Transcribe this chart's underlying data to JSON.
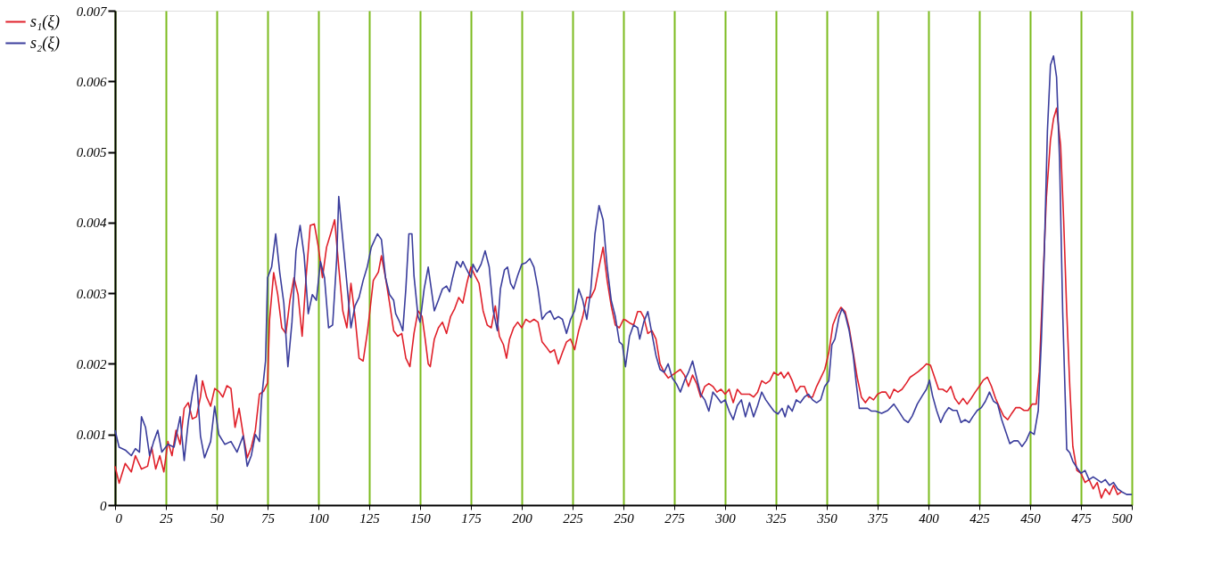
{
  "chart_data": {
    "type": "line",
    "xlim": [
      0,
      500
    ],
    "ylim": [
      0,
      0.007
    ],
    "xticks": [
      0,
      25,
      50,
      75,
      100,
      125,
      150,
      175,
      200,
      225,
      250,
      275,
      300,
      325,
      350,
      375,
      400,
      425,
      450,
      475,
      500
    ],
    "yticks": [
      0,
      0.001,
      0.002,
      0.003,
      0.004,
      0.005,
      0.006,
      0.007
    ],
    "grid": "x",
    "legend": "left",
    "series": [
      {
        "name": "s₁(ξ)",
        "color": "#e0202a",
        "x": [
          0,
          2,
          5,
          8,
          10,
          13,
          16,
          18,
          20,
          22,
          24,
          26,
          28,
          30,
          32,
          34,
          36,
          38,
          40,
          42,
          43,
          45,
          47,
          49,
          51,
          53,
          55,
          57,
          59,
          61,
          63,
          65,
          67,
          69,
          71,
          73,
          75,
          76,
          78,
          80,
          82,
          84,
          86,
          88,
          90,
          92,
          94,
          96,
          98,
          100,
          102,
          104,
          106,
          108,
          110,
          112,
          114,
          116,
          118,
          120,
          122,
          124,
          125,
          127,
          129.5,
          131,
          133,
          135,
          137,
          139,
          141,
          143,
          145,
          147,
          149,
          151,
          152.5,
          154,
          155,
          157,
          159,
          161,
          163,
          165,
          167,
          169,
          171,
          173,
          175,
          177,
          179,
          181,
          183,
          185,
          187,
          189,
          191,
          192.5,
          194,
          196,
          198,
          200,
          202,
          204,
          206,
          208,
          210,
          212,
          214,
          216,
          218,
          220,
          222,
          224,
          226,
          228,
          230,
          232,
          234,
          236,
          238,
          240,
          242,
          244,
          246,
          248,
          250,
          251,
          253,
          255,
          257,
          258.5,
          260,
          262,
          264,
          266,
          268,
          270,
          272,
          274,
          276,
          278,
          280,
          282,
          284,
          286,
          288,
          290,
          292,
          294,
          296,
          298,
          300,
          302,
          304,
          306,
          308,
          310,
          312,
          314,
          316,
          318,
          320,
          322,
          324,
          326,
          327.5,
          329,
          331,
          333,
          335,
          337,
          339,
          341,
          343,
          345,
          347,
          349,
          351,
          353,
          355,
          357,
          359,
          361,
          363,
          365,
          367,
          369,
          371,
          373,
          375,
          377,
          379,
          381,
          383,
          385,
          387,
          389,
          391,
          393,
          395,
          397,
          399,
          401,
          403,
          405,
          407,
          409,
          411,
          413,
          415,
          417,
          419,
          421,
          423,
          425,
          427,
          429,
          431,
          433,
          435,
          437,
          439,
          441,
          443,
          445,
          447,
          449,
          451,
          453,
          454.5,
          456,
          458,
          460,
          461.5,
          463,
          465,
          466.5,
          468,
          469.5,
          471,
          473,
          475,
          477,
          479,
          481,
          483,
          485,
          487,
          489,
          491,
          493,
          495
        ],
        "values": [
          0.00055,
          0.00031,
          0.00059,
          0.00047,
          0.0007,
          0.00051,
          0.00055,
          0.00082,
          0.00051,
          0.0007,
          0.00047,
          0.0009,
          0.0007,
          0.00106,
          0.00086,
          0.00137,
          0.00145,
          0.00122,
          0.00125,
          0.00153,
          0.00176,
          0.00153,
          0.0014,
          0.00165,
          0.00161,
          0.00153,
          0.00169,
          0.00165,
          0.0011,
          0.00137,
          0.001,
          0.00067,
          0.00082,
          0.00106,
          0.00157,
          0.00161,
          0.00173,
          0.00263,
          0.00329,
          0.00298,
          0.00251,
          0.00243,
          0.0029,
          0.00322,
          0.00298,
          0.00239,
          0.00325,
          0.00396,
          0.00398,
          0.00365,
          0.00322,
          0.00365,
          0.00384,
          0.00404,
          0.00337,
          0.00275,
          0.00251,
          0.00314,
          0.00267,
          0.00208,
          0.00204,
          0.00243,
          0.00267,
          0.00318,
          0.0033,
          0.00353,
          0.00322,
          0.00286,
          0.00247,
          0.00239,
          0.00243,
          0.00208,
          0.00196,
          0.00243,
          0.00275,
          0.00267,
          0.00235,
          0.002,
          0.00196,
          0.00235,
          0.00251,
          0.00259,
          0.00243,
          0.00267,
          0.00278,
          0.00294,
          0.00286,
          0.00314,
          0.00337,
          0.00325,
          0.00314,
          0.00275,
          0.00255,
          0.00251,
          0.00282,
          0.00239,
          0.00227,
          0.00208,
          0.00235,
          0.00251,
          0.00259,
          0.00251,
          0.00263,
          0.00259,
          0.00263,
          0.00259,
          0.00231,
          0.00224,
          0.00216,
          0.0022,
          0.002,
          0.00216,
          0.00231,
          0.00235,
          0.0022,
          0.00247,
          0.00267,
          0.00294,
          0.00294,
          0.00306,
          0.00337,
          0.00365,
          0.00318,
          0.00282,
          0.00255,
          0.00251,
          0.00263,
          0.00262,
          0.00258,
          0.00255,
          0.00274,
          0.00274,
          0.00266,
          0.00243,
          0.00247,
          0.00235,
          0.002,
          0.00188,
          0.0018,
          0.00184,
          0.00188,
          0.00192,
          0.00184,
          0.00168,
          0.00184,
          0.00172,
          0.00153,
          0.00168,
          0.00172,
          0.00168,
          0.0016,
          0.00164,
          0.00157,
          0.00164,
          0.00145,
          0.00164,
          0.00157,
          0.00157,
          0.00157,
          0.00153,
          0.0016,
          0.00176,
          0.00172,
          0.00176,
          0.00188,
          0.00184,
          0.00188,
          0.0018,
          0.00188,
          0.00176,
          0.0016,
          0.00168,
          0.00168,
          0.00153,
          0.00153,
          0.00168,
          0.0018,
          0.00192,
          0.00216,
          0.00255,
          0.0027,
          0.0028,
          0.00274,
          0.00251,
          0.00216,
          0.0018,
          0.00153,
          0.00145,
          0.00153,
          0.00149,
          0.00157,
          0.0016,
          0.0016,
          0.00151,
          0.00164,
          0.0016,
          0.00164,
          0.00172,
          0.00181,
          0.00185,
          0.00189,
          0.00194,
          0.002,
          0.00198,
          0.00181,
          0.00164,
          0.00164,
          0.0016,
          0.00168,
          0.00151,
          0.00143,
          0.00151,
          0.00143,
          0.00151,
          0.0016,
          0.00168,
          0.00177,
          0.00181,
          0.00168,
          0.00151,
          0.00138,
          0.00126,
          0.00121,
          0.0013,
          0.00138,
          0.00138,
          0.00134,
          0.00134,
          0.00143,
          0.00143,
          0.00189,
          0.00296,
          0.00436,
          0.00517,
          0.00547,
          0.00562,
          0.00509,
          0.00402,
          0.00274,
          0.00168,
          0.00083,
          0.00049,
          0.00045,
          0.00032,
          0.00036,
          0.00023,
          0.00032,
          0.0001,
          0.00023,
          0.00015,
          0.00028,
          0.00015,
          0.00019
        ]
      },
      {
        "name": "s₂(ξ)",
        "color": "#3a3d9c",
        "x": [
          0,
          2,
          5,
          8,
          10,
          12,
          13,
          15,
          17,
          19,
          21,
          23,
          26,
          29,
          32,
          34,
          36,
          38,
          40,
          42,
          44,
          47,
          49,
          51,
          54,
          57,
          60,
          63,
          65,
          67,
          69,
          71,
          72,
          74,
          75,
          77,
          79,
          81,
          83,
          85,
          87,
          89,
          91,
          93,
          95,
          97,
          99,
          101,
          103,
          105,
          107,
          109,
          110,
          112,
          114,
          116,
          118,
          120,
          122,
          124,
          126,
          129,
          131,
          133,
          135,
          137,
          138,
          140,
          141.5,
          143,
          144.5,
          146,
          147,
          149,
          150,
          152,
          154,
          155.5,
          157,
          159,
          161,
          163,
          164.5,
          166,
          168,
          170,
          171,
          173,
          175,
          176,
          178,
          180,
          182,
          184,
          186,
          188,
          189.5,
          191.5,
          193,
          194.5,
          196,
          198,
          200,
          202,
          204,
          206,
          208,
          210,
          212,
          214,
          216,
          218,
          220,
          222,
          224,
          226,
          228,
          230,
          232,
          234,
          236,
          238,
          240,
          242,
          244,
          246,
          248,
          249.5,
          251,
          253,
          255,
          257,
          258,
          260,
          262,
          264,
          266,
          268,
          270,
          272,
          274,
          276,
          278,
          280,
          282,
          284,
          286,
          288,
          290,
          292,
          294,
          296,
          298,
          300,
          302,
          304,
          306,
          308,
          310,
          312,
          314,
          316,
          318,
          320,
          322,
          324,
          326,
          328,
          329.5,
          331,
          333,
          335,
          337,
          339,
          341,
          343,
          345,
          347,
          349,
          351,
          352.5,
          354,
          356,
          357.5,
          359,
          361,
          363,
          364.5,
          366,
          368,
          370,
          372,
          374,
          377,
          380,
          383,
          386,
          388,
          390,
          392,
          394.5,
          397,
          399,
          400.5,
          402,
          404,
          406,
          408,
          410,
          412,
          414,
          416,
          418,
          420,
          422,
          424,
          426,
          428,
          430,
          432,
          434,
          436,
          438,
          440,
          442,
          444,
          446,
          448,
          450,
          452,
          454,
          455.5,
          457,
          458.5,
          460,
          461.5,
          463,
          464.5,
          466,
          468,
          469.5,
          471,
          473,
          475,
          477,
          479,
          481,
          483,
          485,
          487,
          489,
          491,
          493,
          495,
          497.5,
          500
        ],
        "values": [
          0.00106,
          0.00082,
          0.00078,
          0.0007,
          0.0008,
          0.00075,
          0.00125,
          0.0011,
          0.0007,
          0.0009,
          0.00106,
          0.00075,
          0.00086,
          0.00082,
          0.00125,
          0.00063,
          0.00118,
          0.00157,
          0.00184,
          0.00098,
          0.00067,
          0.0009,
          0.0014,
          0.001,
          0.00086,
          0.0009,
          0.00075,
          0.00098,
          0.00055,
          0.0007,
          0.001,
          0.0009,
          0.00149,
          0.00204,
          0.00322,
          0.00337,
          0.00384,
          0.00329,
          0.00286,
          0.00196,
          0.00259,
          0.0036,
          0.00396,
          0.00353,
          0.00271,
          0.00298,
          0.0029,
          0.00345,
          0.00322,
          0.00251,
          0.00255,
          0.00349,
          0.00437,
          0.00376,
          0.00314,
          0.00251,
          0.00282,
          0.00294,
          0.00318,
          0.00337,
          0.00365,
          0.00384,
          0.00376,
          0.00322,
          0.00298,
          0.0029,
          0.00271,
          0.00259,
          0.00247,
          0.00306,
          0.00384,
          0.00384,
          0.00325,
          0.00267,
          0.00259,
          0.00306,
          0.00337,
          0.00306,
          0.00275,
          0.0029,
          0.00306,
          0.0031,
          0.00302,
          0.00322,
          0.00345,
          0.00337,
          0.00345,
          0.00333,
          0.00322,
          0.00341,
          0.0033,
          0.00341,
          0.0036,
          0.00337,
          0.00275,
          0.00247,
          0.00306,
          0.00333,
          0.00337,
          0.00314,
          0.00306,
          0.00325,
          0.00341,
          0.00343,
          0.00349,
          0.00337,
          0.00306,
          0.00263,
          0.00271,
          0.00275,
          0.00263,
          0.00267,
          0.00263,
          0.00243,
          0.00263,
          0.00275,
          0.00306,
          0.0029,
          0.00263,
          0.00306,
          0.00384,
          0.00424,
          0.00404,
          0.00337,
          0.0029,
          0.00267,
          0.00231,
          0.00227,
          0.00196,
          0.00239,
          0.00255,
          0.00251,
          0.00235,
          0.00259,
          0.00274,
          0.00243,
          0.00212,
          0.00192,
          0.00188,
          0.002,
          0.0018,
          0.00172,
          0.0016,
          0.00176,
          0.00188,
          0.00204,
          0.0018,
          0.00157,
          0.00149,
          0.00133,
          0.0016,
          0.00153,
          0.00145,
          0.00149,
          0.00133,
          0.00121,
          0.00141,
          0.00149,
          0.00125,
          0.00145,
          0.00125,
          0.00141,
          0.0016,
          0.00149,
          0.00141,
          0.00133,
          0.00129,
          0.00137,
          0.00125,
          0.00141,
          0.00133,
          0.00149,
          0.00145,
          0.00153,
          0.00157,
          0.00149,
          0.00145,
          0.00149,
          0.00168,
          0.00176,
          0.00227,
          0.00235,
          0.00266,
          0.00278,
          0.0027,
          0.00247,
          0.00212,
          0.00172,
          0.00137,
          0.00137,
          0.00137,
          0.00133,
          0.00133,
          0.0013,
          0.00134,
          0.00143,
          0.0013,
          0.00121,
          0.00117,
          0.00126,
          0.00143,
          0.00155,
          0.00164,
          0.00177,
          0.00155,
          0.00134,
          0.00117,
          0.0013,
          0.00138,
          0.00134,
          0.00134,
          0.00117,
          0.00121,
          0.00117,
          0.00126,
          0.00134,
          0.00138,
          0.00147,
          0.0016,
          0.00147,
          0.00143,
          0.00121,
          0.00104,
          0.00087,
          0.00091,
          0.00091,
          0.00083,
          0.00091,
          0.00104,
          0.001,
          0.00134,
          0.00232,
          0.0036,
          0.0053,
          0.00623,
          0.00636,
          0.00606,
          0.00487,
          0.00274,
          0.00079,
          0.00074,
          0.00062,
          0.00053,
          0.00045,
          0.00049,
          0.00036,
          0.0004,
          0.00036,
          0.00032,
          0.00036,
          0.00028,
          0.00032,
          0.00023,
          0.00019,
          0.00015,
          0.00015
        ]
      }
    ]
  }
}
